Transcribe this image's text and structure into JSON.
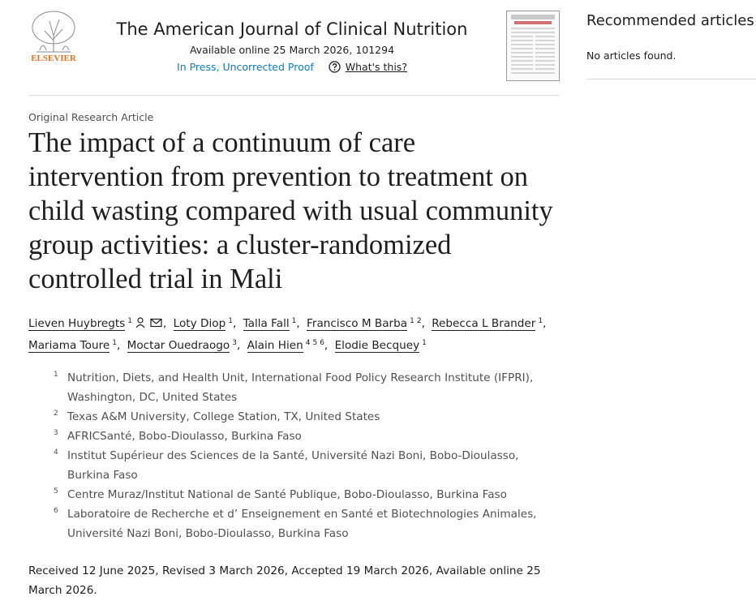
{
  "publisher": "ELSEVIER",
  "journal": {
    "name": "The American Journal of Clinical Nutrition",
    "available_online": "Available online 25 March 2026, 101294",
    "status": "In Press, Uncorrected Proof",
    "whats_this": "What's this?"
  },
  "sidebar": {
    "title": "Recommended articles",
    "empty": "No articles found."
  },
  "article": {
    "type": "Original Research Article",
    "title": "The impact of a continuum of care intervention from prevention to treatment on child wasting compared with usual community group activities: a cluster-randomized controlled trial in Mali",
    "authors": [
      {
        "name": "Lieven Huybregts",
        "sups": [
          "1"
        ]
      },
      {
        "name": "Loty Diop",
        "sups": [
          "1"
        ]
      },
      {
        "name": "Talla Fall",
        "sups": [
          "1"
        ]
      },
      {
        "name": "Francisco M Barba",
        "sups": [
          "1",
          "2"
        ]
      },
      {
        "name": "Rebecca L Brander",
        "sups": [
          "1"
        ]
      },
      {
        "name": "Mariama Toure",
        "sups": [
          "1"
        ]
      },
      {
        "name": "Moctar Ouedraogo",
        "sups": [
          "3"
        ]
      },
      {
        "name": "Alain Hien",
        "sups": [
          "4",
          "5",
          "6"
        ]
      },
      {
        "name": "Elodie Becquey",
        "sups": [
          "1"
        ]
      }
    ],
    "affiliations": [
      {
        "sup": "1",
        "text": "Nutrition, Diets, and Health Unit, International Food Policy Research Institute (IFPRI), Washington, DC, United States"
      },
      {
        "sup": "2",
        "text": "Texas A&M University, College Station, TX, United States"
      },
      {
        "sup": "3",
        "text": "AFRICSanté, Bobo-Dioulasso, Burkina Faso"
      },
      {
        "sup": "4",
        "text": "Institut Supérieur des Sciences de la Santé, Université Nazi Boni, Bobo-Dioulasso, Burkina Faso"
      },
      {
        "sup": "5",
        "text": "Centre Muraz/Institut National de Santé Publique, Bobo-Dioulasso, Burkina Faso"
      },
      {
        "sup": "6",
        "text": "Laboratoire de Recherche et d’ Enseignement en Santé et Biotechnologies Animales, Université Nazi Boni, Bobo-Dioulasso, Burkina Faso"
      }
    ],
    "history": "Received 12 June 2025, Revised 3 March 2026, Accepted 19 March 2026, Available online 25 March 2026."
  }
}
